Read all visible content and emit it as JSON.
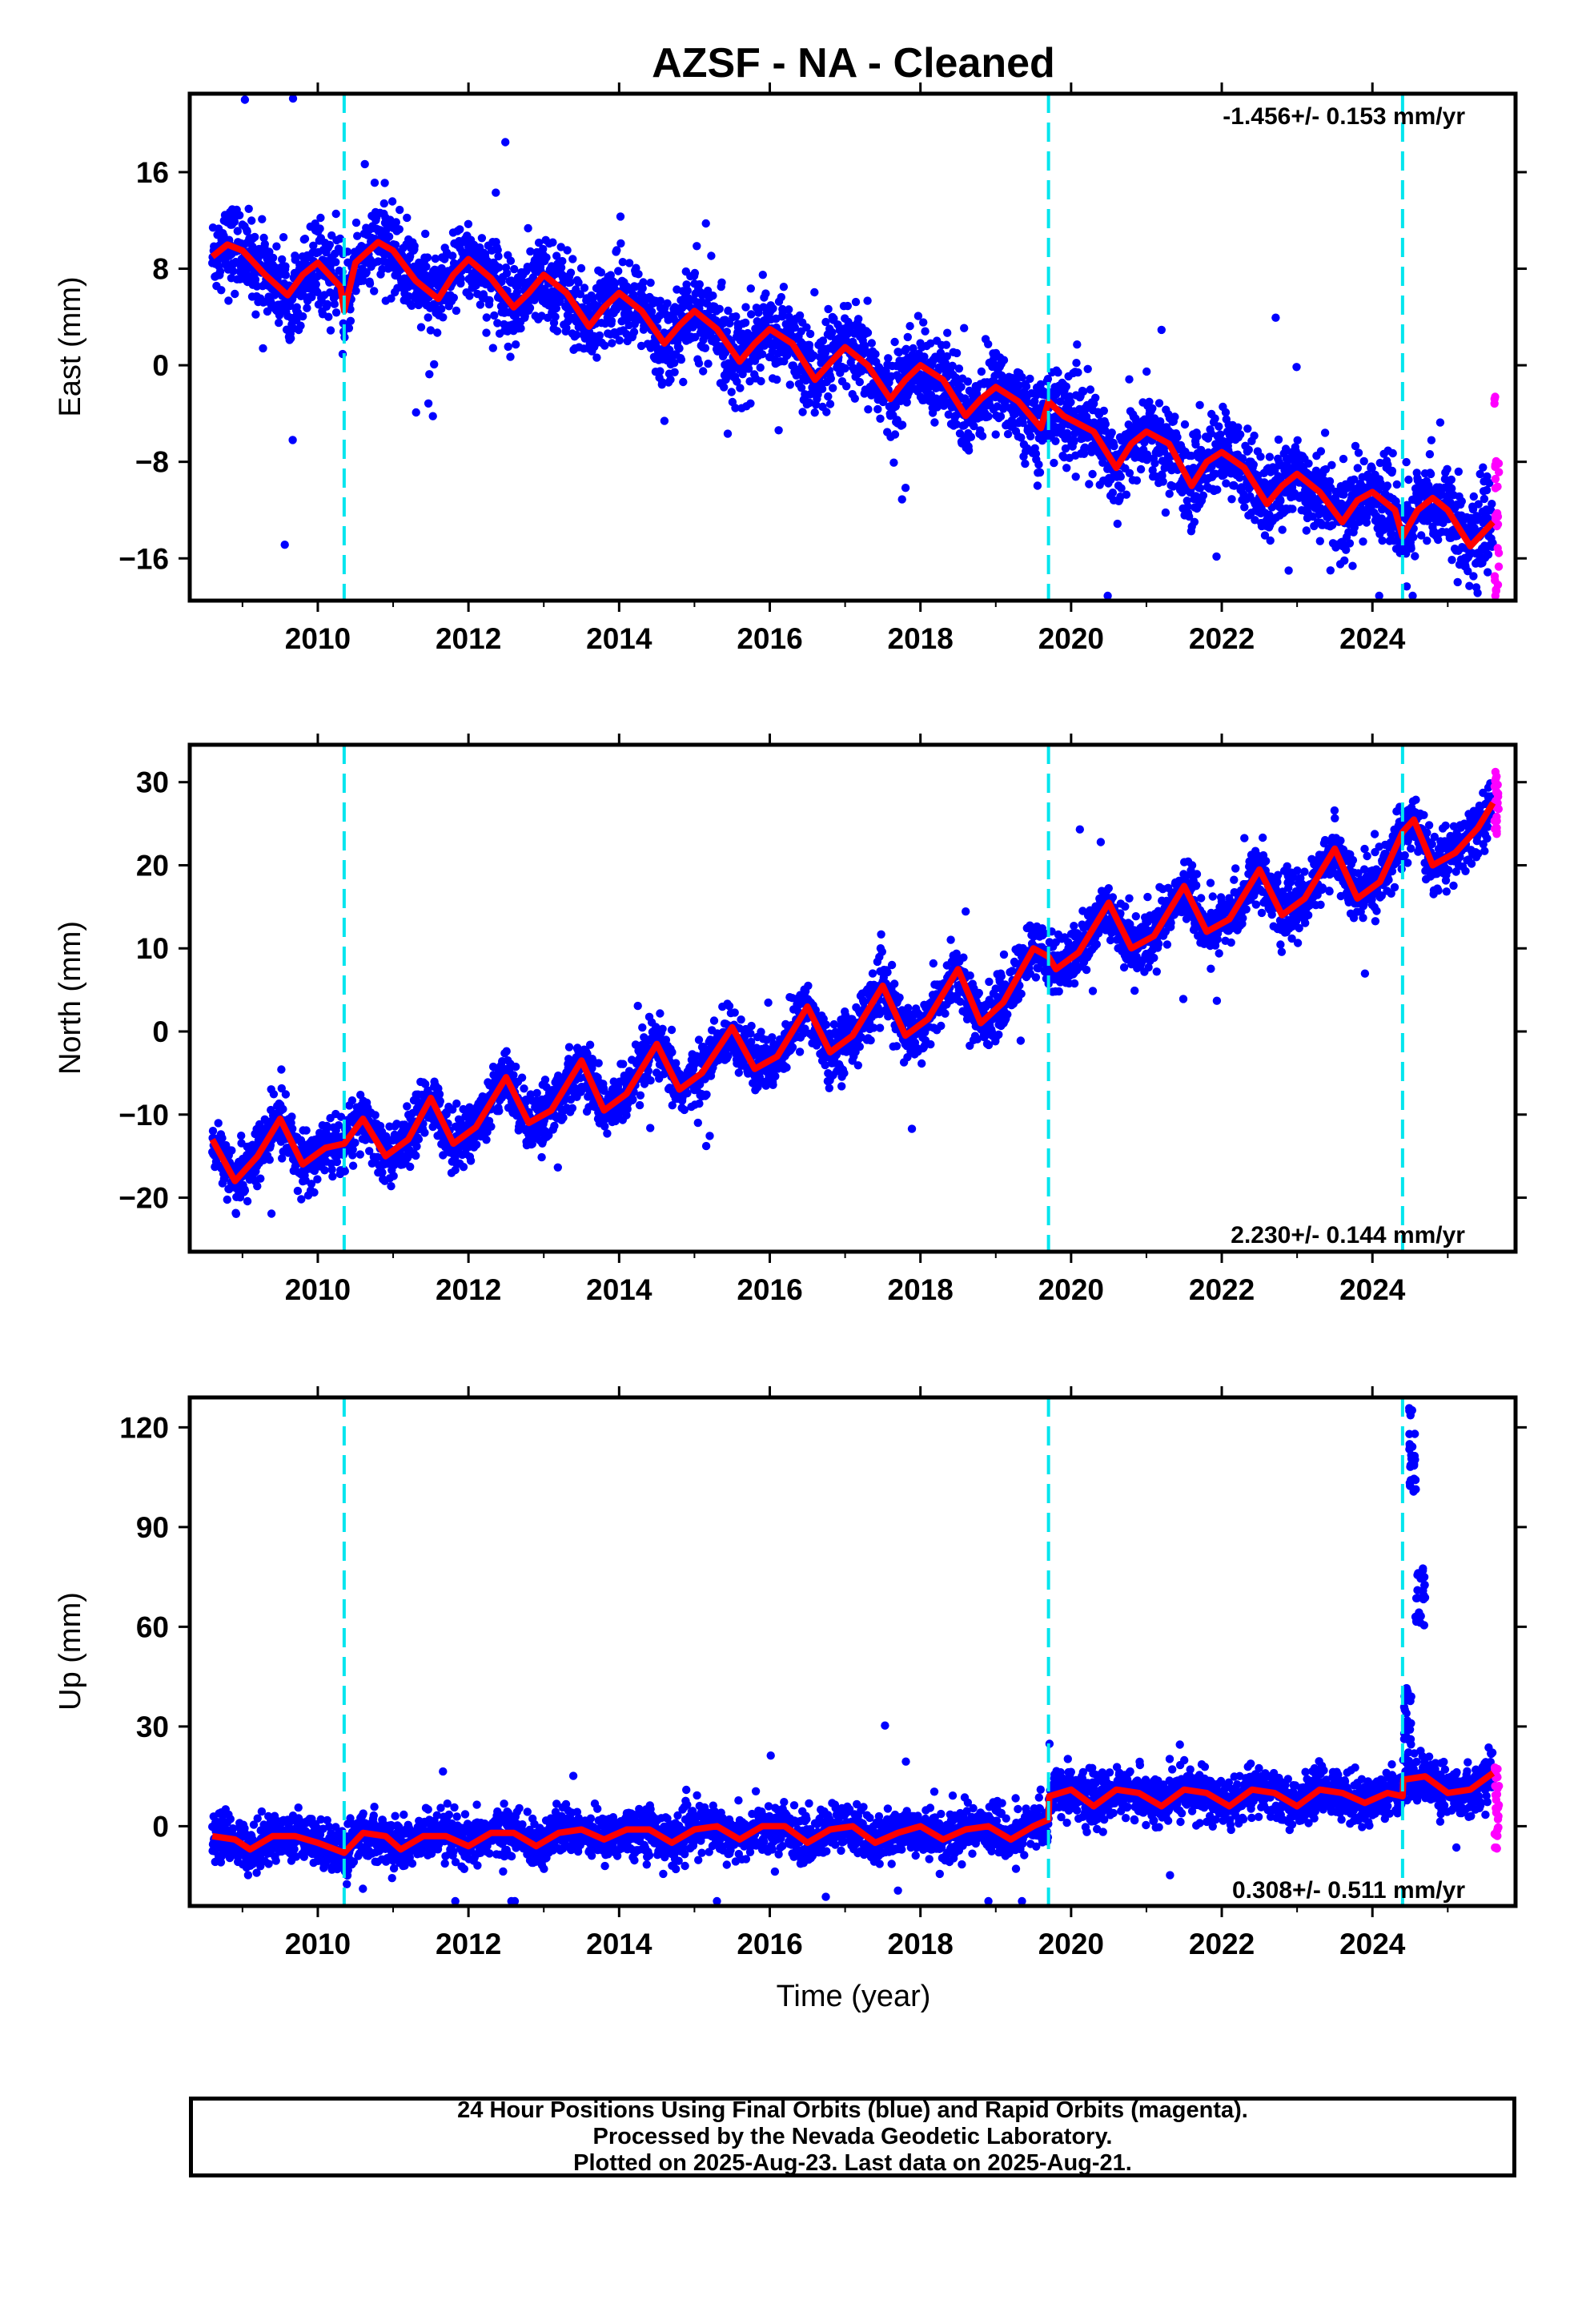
{
  "title": "AZSF  - NA - Cleaned",
  "caption": {
    "line1": "24 Hour Positions Using Final Orbits (blue) and Rapid Orbits (magenta).",
    "line2": "Processed by the Nevada Geodetic Laboratory.",
    "line3": "Plotted on 2025-Aug-23. Last data on 2025-Aug-21."
  },
  "colors": {
    "final_orbits": "#0000ff",
    "rapid_orbits": "#ff00ff",
    "model_fit": "#ff0000",
    "equipment_change": "#00e5ee"
  },
  "chart_data": [
    {
      "type": "scatter",
      "title": "AZSF  - NA - Cleaned",
      "ylabel": "East (mm)",
      "xlabel": "",
      "xlim": [
        2008.3,
        2025.9
      ],
      "ylim": [
        -19.5,
        22.5
      ],
      "xticks": [
        2010,
        2012,
        2014,
        2016,
        2018,
        2020,
        2022,
        2024
      ],
      "yticks": [
        -16,
        -8,
        0,
        8,
        16
      ],
      "ytick_labels": [
        "−16",
        "−8",
        "0",
        "8",
        "16"
      ],
      "rate_label": "-1.456+/- 0.153 mm/yr",
      "rate_position": "top-right",
      "vertical_lines": [
        2010.35,
        2019.7,
        2024.4
      ],
      "fit": {
        "x": [
          2008.6,
          2008.8,
          2009.0,
          2009.3,
          2009.6,
          2009.8,
          2010.0,
          2010.3,
          2010.35,
          2010.5,
          2010.8,
          2011.0,
          2011.3,
          2011.6,
          2011.8,
          2012.0,
          2012.3,
          2012.6,
          2012.8,
          2013.0,
          2013.3,
          2013.6,
          2013.8,
          2014.0,
          2014.3,
          2014.6,
          2014.8,
          2015.0,
          2015.3,
          2015.6,
          2015.8,
          2016.0,
          2016.3,
          2016.6,
          2016.8,
          2017.0,
          2017.3,
          2017.6,
          2017.8,
          2018.0,
          2018.3,
          2018.6,
          2018.8,
          2019.0,
          2019.3,
          2019.6,
          2019.7,
          2019.9,
          2020.3,
          2020.6,
          2020.8,
          2021.0,
          2021.3,
          2021.6,
          2021.8,
          2022.0,
          2022.3,
          2022.6,
          2022.8,
          2023.0,
          2023.3,
          2023.6,
          2023.8,
          2024.0,
          2024.3,
          2024.4,
          2024.6,
          2024.8,
          2025.0,
          2025.3,
          2025.6
        ],
        "y": [
          9.0,
          10.0,
          9.5,
          7.5,
          5.8,
          7.5,
          8.5,
          6.5,
          4.5,
          8.5,
          10.2,
          9.5,
          7.0,
          5.5,
          7.5,
          8.8,
          7.2,
          4.8,
          6.0,
          7.5,
          6.0,
          3.2,
          4.8,
          6.0,
          4.5,
          1.8,
          3.3,
          4.5,
          3.0,
          0.3,
          1.8,
          3.0,
          1.8,
          -1.2,
          0.2,
          1.5,
          0.0,
          -2.8,
          -1.2,
          0.0,
          -1.2,
          -4.2,
          -2.8,
          -1.8,
          -3.0,
          -5.2,
          -3.0,
          -4.2,
          -5.5,
          -8.5,
          -6.5,
          -5.5,
          -6.5,
          -10.0,
          -8.0,
          -7.2,
          -8.5,
          -11.5,
          -10.0,
          -9.0,
          -10.5,
          -13.0,
          -11.2,
          -10.5,
          -12.0,
          -14.2,
          -12.0,
          -11.0,
          -12.0,
          -15.0,
          -13.0
        ]
      },
      "noise": {
        "sigma": 1.7,
        "outlier_sigma": 6.0
      },
      "rapid_y": [
        -3.5,
        -8,
        -9,
        -10,
        -12,
        -14,
        -16,
        -18,
        -19
      ]
    },
    {
      "type": "scatter",
      "ylabel": "North (mm)",
      "xlabel": "",
      "xlim": [
        2008.3,
        2025.9
      ],
      "ylim": [
        -26.5,
        34.5
      ],
      "xticks": [
        2010,
        2012,
        2014,
        2016,
        2018,
        2020,
        2022,
        2024
      ],
      "yticks": [
        -20,
        -10,
        0,
        10,
        20,
        30
      ],
      "ytick_labels": [
        "−20",
        "−10",
        "0",
        "10",
        "20",
        "30"
      ],
      "rate_label": "2.230+/- 0.144 mm/yr",
      "rate_position": "bottom-right",
      "vertical_lines": [
        2010.35,
        2019.7,
        2024.4
      ],
      "fit": {
        "x": [
          2008.6,
          2008.9,
          2009.2,
          2009.5,
          2009.8,
          2010.1,
          2010.35,
          2010.6,
          2010.9,
          2011.2,
          2011.5,
          2011.8,
          2012.1,
          2012.5,
          2012.8,
          2013.1,
          2013.5,
          2013.8,
          2014.1,
          2014.5,
          2014.8,
          2015.1,
          2015.5,
          2015.8,
          2016.1,
          2016.5,
          2016.8,
          2017.1,
          2017.5,
          2017.8,
          2018.1,
          2018.5,
          2018.8,
          2019.1,
          2019.5,
          2019.7,
          2019.8,
          2020.1,
          2020.5,
          2020.8,
          2021.1,
          2021.5,
          2021.8,
          2022.1,
          2022.5,
          2022.8,
          2023.1,
          2023.5,
          2023.8,
          2024.1,
          2024.4,
          2024.55,
          2024.8,
          2025.1,
          2025.4,
          2025.6
        ],
        "y": [
          -13.0,
          -18.0,
          -15.0,
          -10.5,
          -16.0,
          -14.0,
          -13.5,
          -10.5,
          -15.0,
          -13.0,
          -8.0,
          -13.5,
          -11.5,
          -5.5,
          -11.0,
          -9.5,
          -3.5,
          -9.5,
          -7.5,
          -1.5,
          -7.0,
          -5.0,
          0.5,
          -4.5,
          -3.0,
          3.0,
          -2.5,
          -0.5,
          5.5,
          -0.5,
          1.5,
          7.5,
          1.0,
          3.5,
          10.0,
          9.0,
          7.5,
          9.5,
          15.5,
          10.0,
          11.5,
          17.5,
          12.0,
          13.5,
          19.5,
          14.0,
          16.0,
          22.0,
          16.0,
          18.0,
          24.0,
          25.5,
          20.0,
          21.5,
          24.5,
          27.5
        ]
      },
      "noise": {
        "sigma": 1.7,
        "outlier_sigma": 6.0
      },
      "rapid_y": [
        24,
        25,
        26,
        27,
        28,
        29,
        30,
        31
      ]
    },
    {
      "type": "scatter",
      "ylabel": "Up (mm)",
      "xlabel": "Time (year)",
      "xlim": [
        2008.3,
        2025.9
      ],
      "ylim": [
        -24,
        129
      ],
      "xticks": [
        2010,
        2012,
        2014,
        2016,
        2018,
        2020,
        2022,
        2024
      ],
      "yticks": [
        0,
        30,
        60,
        90,
        120
      ],
      "ytick_labels": [
        "0",
        "30",
        "60",
        "90",
        "120"
      ],
      "rate_label": "0.308+/- 0.511 mm/yr",
      "rate_position": "bottom-right",
      "vertical_lines": [
        2010.35,
        2019.7,
        2024.4
      ],
      "fit": {
        "x": [
          2008.6,
          2008.9,
          2009.1,
          2009.4,
          2009.7,
          2010.0,
          2010.35,
          2010.6,
          2010.9,
          2011.1,
          2011.4,
          2011.7,
          2012.0,
          2012.3,
          2012.6,
          2012.9,
          2013.2,
          2013.5,
          2013.8,
          2014.1,
          2014.4,
          2014.7,
          2015.0,
          2015.3,
          2015.6,
          2015.9,
          2016.2,
          2016.5,
          2016.8,
          2017.1,
          2017.4,
          2017.7,
          2018.0,
          2018.3,
          2018.6,
          2018.9,
          2019.2,
          2019.5,
          2019.7,
          2019.71,
          2020.0,
          2020.3,
          2020.6,
          2020.9,
          2021.2,
          2021.5,
          2021.8,
          2022.1,
          2022.4,
          2022.7,
          2023.0,
          2023.3,
          2023.6,
          2023.9,
          2024.2,
          2024.4,
          2024.41,
          2024.7,
          2025.0,
          2025.3,
          2025.6
        ],
        "y": [
          -3,
          -4,
          -7,
          -3,
          -3,
          -5,
          -8,
          -2,
          -3,
          -7,
          -3,
          -3,
          -6,
          -2,
          -2,
          -6,
          -2,
          -1,
          -4,
          -1,
          -1,
          -5,
          -1,
          0,
          -4,
          0,
          0,
          -5,
          -1,
          0,
          -5,
          -2,
          0,
          -4,
          -1,
          0,
          -4,
          0,
          2,
          9,
          11,
          6,
          11,
          10,
          6,
          11,
          10,
          6,
          11,
          10,
          6,
          11,
          10,
          7,
          10,
          9,
          14,
          15,
          10,
          11,
          16
        ]
      },
      "noise": {
        "sigma": 3.5,
        "outlier_sigma": 14.0
      },
      "spikes": [
        {
          "x0": 2024.42,
          "x1": 2024.52,
          "y0": 22,
          "y1": 42
        },
        {
          "x0": 2024.48,
          "x1": 2024.58,
          "y0": 100,
          "y1": 126
        },
        {
          "x0": 2024.56,
          "x1": 2024.7,
          "y0": 60,
          "y1": 79
        }
      ],
      "rapid_y": [
        -6,
        -3,
        0,
        3,
        6,
        9,
        12,
        15,
        17
      ]
    }
  ]
}
